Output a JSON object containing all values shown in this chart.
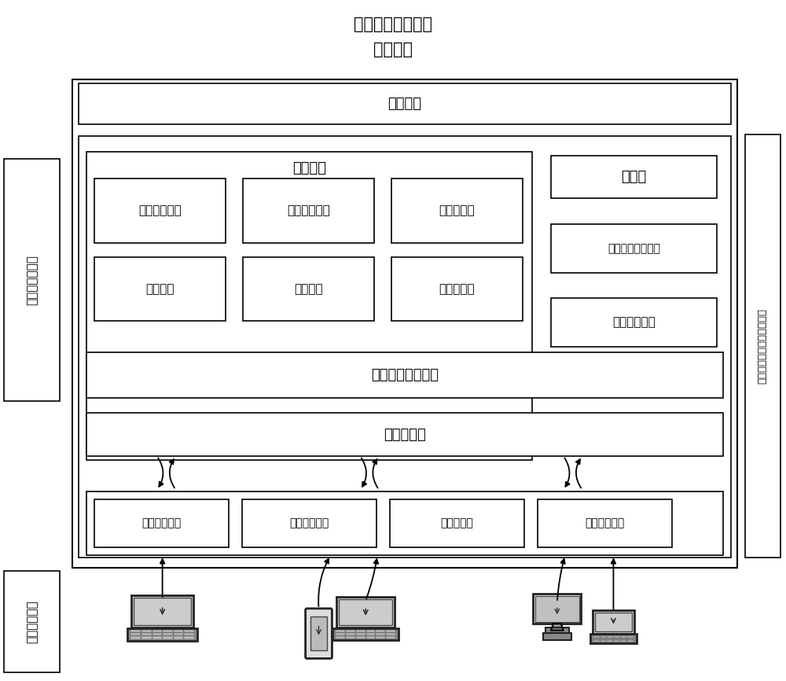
{
  "title_line1": "物联网自管理平台",
  "title_line2": "逻辑架构",
  "background_color": "#ffffff",
  "font_size_title": 15,
  "font_size_label": 13,
  "font_size_small": 11,
  "font_size_side": 11,
  "left_label1": "业务运营支撑层",
  "right_label": "物联网自管理平台数据中心",
  "bottom_label": "平台接入用户",
  "user_app": "用户应用",
  "sys_service": "系统服务",
  "biz_lib": "业务库",
  "biz_desc": "业务描述支持模块",
  "biz_parse": "业务解析模块",
  "user_mgmt": "用户管理模块",
  "perm_mgmt": "权限管理模块",
  "thread_mgmt": "线程池管理",
  "exception_mgmt": "异常管理",
  "log_mgmt": "日志管理",
  "db_interact": "数据库交互",
  "msg_queue": "消息队列管理模块",
  "comm_interface": "通信层接口",
  "data_access": "数据访问模块",
  "protocol_parse": "协议解析模块",
  "encode_decode": "编解码模块",
  "protocol_security": "协议安全模块"
}
